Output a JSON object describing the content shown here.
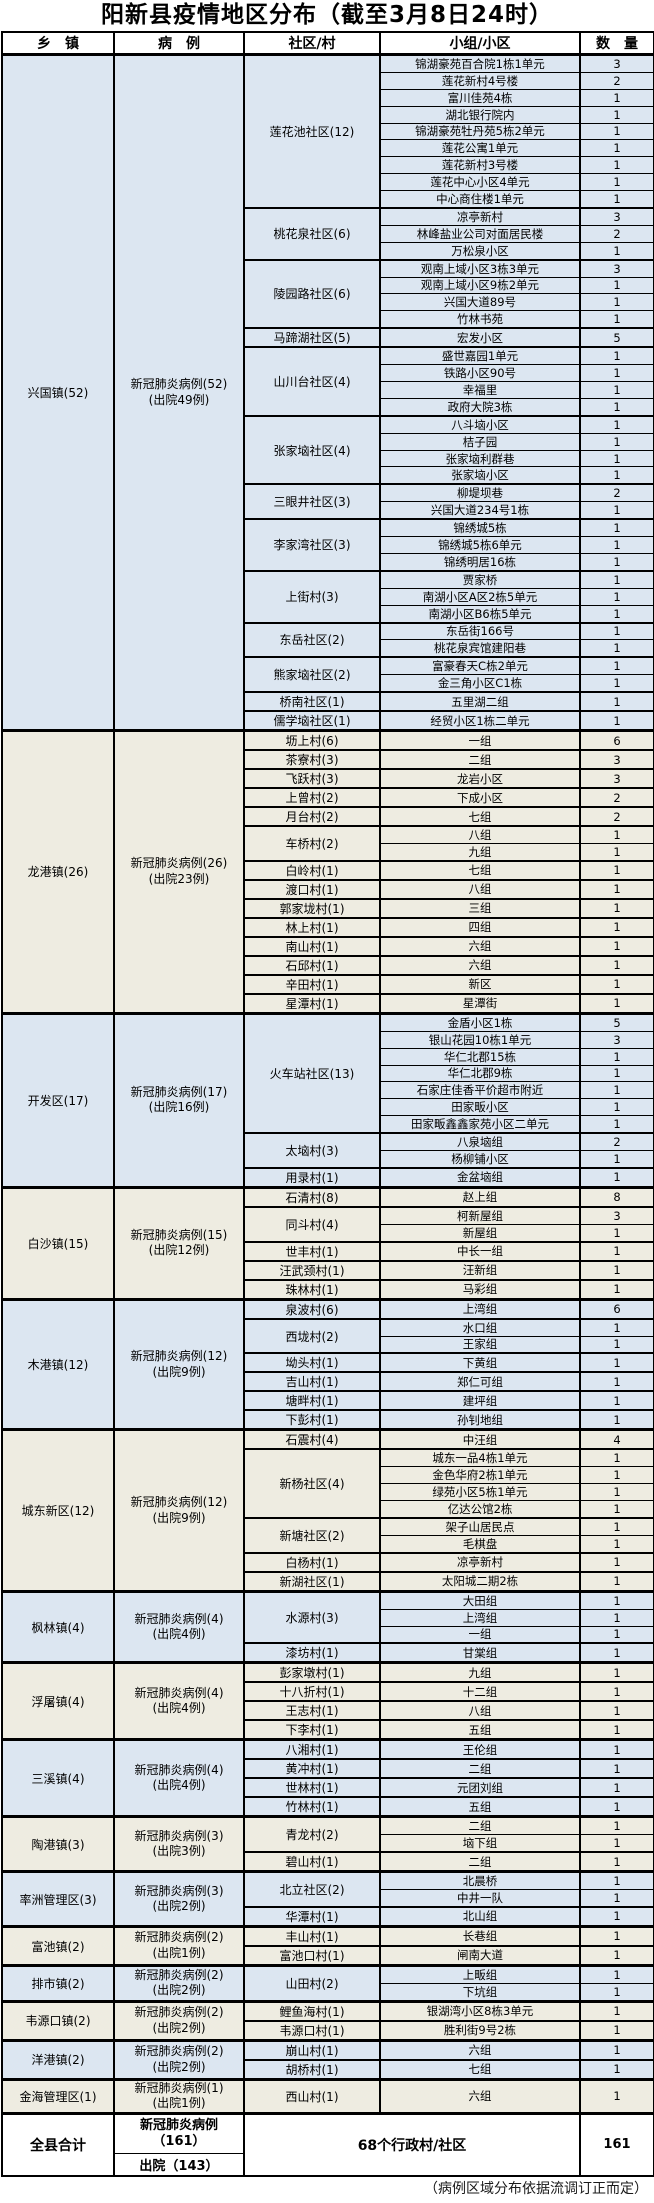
{
  "title": "阳新县疫情地区分布（截至3月8日24时）",
  "headers": {
    "town": "乡　镇",
    "cases": "病　例",
    "community": "社区/村",
    "group": "小组/小区",
    "count": "数　量"
  },
  "colors": {
    "band_blue": "#dce6f1",
    "band_cream": "#eeece1",
    "border": "#000000"
  },
  "towns": [
    {
      "name": "兴国镇(52)",
      "cases_line1": "新冠肺炎病例(52)",
      "cases_line2": "(出院49例)",
      "theme": "blue",
      "communities": [
        {
          "name": "莲花池社区(12)",
          "places": [
            {
              "place": "锦湖豪苑百合院1栋1单元",
              "count": "3"
            },
            {
              "place": "莲花新村4号楼",
              "count": "2"
            },
            {
              "place": "富川佳苑4栋",
              "count": "1"
            },
            {
              "place": "湖北银行院内",
              "count": "1"
            },
            {
              "place": "锦湖豪苑牡丹苑5栋2单元",
              "count": "1"
            },
            {
              "place": "莲花公寓1单元",
              "count": "1"
            },
            {
              "place": "莲花新村3号楼",
              "count": "1"
            },
            {
              "place": "莲花中心小区4单元",
              "count": "1"
            },
            {
              "place": "中心商住楼1单元",
              "count": "1"
            }
          ]
        },
        {
          "name": "桃花泉社区(6)",
          "places": [
            {
              "place": "凉亭新村",
              "count": "3"
            },
            {
              "place": "林峰盐业公司对面居民楼",
              "count": "2"
            },
            {
              "place": "万松泉小区",
              "count": "1"
            }
          ]
        },
        {
          "name": "陵园路社区(6)",
          "places": [
            {
              "place": "观南上域小区3栋3单元",
              "count": "3"
            },
            {
              "place": "观南上域小区9栋2单元",
              "count": "1"
            },
            {
              "place": "兴国大道89号",
              "count": "1"
            },
            {
              "place": "竹林书苑",
              "count": "1"
            }
          ]
        },
        {
          "name": "马蹄湖社区(5)",
          "places": [
            {
              "place": "宏发小区",
              "count": "5"
            }
          ]
        },
        {
          "name": "山川台社区(4)",
          "places": [
            {
              "place": "盛世嘉园1单元",
              "count": "1"
            },
            {
              "place": "铁路小区90号",
              "count": "1"
            },
            {
              "place": "幸福里",
              "count": "1"
            },
            {
              "place": "政府大院3栋",
              "count": "1"
            }
          ]
        },
        {
          "name": "张家垴社区(4)",
          "places": [
            {
              "place": "八斗垴小区",
              "count": "1"
            },
            {
              "place": "桔子园",
              "count": "1"
            },
            {
              "place": "张家垴利群巷",
              "count": "1"
            },
            {
              "place": "张家垴小区",
              "count": "1"
            }
          ]
        },
        {
          "name": "三眼井社区(3)",
          "places": [
            {
              "place": "柳堤坝巷",
              "count": "2"
            },
            {
              "place": "兴国大道234号1栋",
              "count": "1"
            }
          ]
        },
        {
          "name": "李家湾社区(3)",
          "places": [
            {
              "place": "锦绣城5栋",
              "count": "1"
            },
            {
              "place": "锦绣城5栋6单元",
              "count": "1"
            },
            {
              "place": "锦绣明居16栋",
              "count": "1"
            }
          ]
        },
        {
          "name": "上街村(3)",
          "places": [
            {
              "place": "贾家桥",
              "count": "1"
            },
            {
              "place": "南湖小区A区2栋5单元",
              "count": "1"
            },
            {
              "place": "南湖小区B6栋5单元",
              "count": "1"
            }
          ]
        },
        {
          "name": "东岳社区(2)",
          "places": [
            {
              "place": "东岳街166号",
              "count": "1"
            },
            {
              "place": "桃花泉宾馆建阳巷",
              "count": "1"
            }
          ]
        },
        {
          "name": "熊家垴社区(2)",
          "places": [
            {
              "place": "富豪春天C栋2单元",
              "count": "1"
            },
            {
              "place": "金三角小区C1栋",
              "count": "1"
            }
          ]
        },
        {
          "name": "桥南社区(1)",
          "places": [
            {
              "place": "五里湖二组",
              "count": "1"
            }
          ]
        },
        {
          "name": "儒学垴社区(1)",
          "places": [
            {
              "place": "经贸小区1栋二单元",
              "count": "1"
            }
          ]
        }
      ]
    },
    {
      "name": "龙港镇(26)",
      "cases_line1": "新冠肺炎病例(26)",
      "cases_line2": "(出院23例)",
      "theme": "cream",
      "communities": [
        {
          "name": "坜上村(6)",
          "places": [
            {
              "place": "一组",
              "count": "6"
            }
          ]
        },
        {
          "name": "茶寮村(3)",
          "places": [
            {
              "place": "二组",
              "count": "3"
            }
          ]
        },
        {
          "name": "飞跃村(3)",
          "places": [
            {
              "place": "龙岩小区",
              "count": "3"
            }
          ]
        },
        {
          "name": "上曾村(2)",
          "places": [
            {
              "place": "下成小区",
              "count": "2"
            }
          ]
        },
        {
          "name": "月台村(2)",
          "places": [
            {
              "place": "七组",
              "count": "2"
            }
          ]
        },
        {
          "name": "车桥村(2)",
          "places": [
            {
              "place": "八组",
              "count": "1"
            },
            {
              "place": "九组",
              "count": "1"
            }
          ]
        },
        {
          "name": "白岭村(1)",
          "places": [
            {
              "place": "七组",
              "count": "1"
            }
          ]
        },
        {
          "name": "渡口村(1)",
          "places": [
            {
              "place": "八组",
              "count": "1"
            }
          ]
        },
        {
          "name": "郭家垅村(1)",
          "places": [
            {
              "place": "三组",
              "count": "1"
            }
          ]
        },
        {
          "name": "林上村(1)",
          "places": [
            {
              "place": "四组",
              "count": "1"
            }
          ]
        },
        {
          "name": "南山村(1)",
          "places": [
            {
              "place": "六组",
              "count": "1"
            }
          ]
        },
        {
          "name": "石邱村(1)",
          "places": [
            {
              "place": "六组",
              "count": "1"
            }
          ]
        },
        {
          "name": "辛田村(1)",
          "places": [
            {
              "place": "新区",
              "count": "1"
            }
          ]
        },
        {
          "name": "星潭村(1)",
          "places": [
            {
              "place": "星潭街",
              "count": "1"
            }
          ]
        }
      ]
    },
    {
      "name": "开发区(17)",
      "cases_line1": "新冠肺炎病例(17)",
      "cases_line2": "(出院16例)",
      "theme": "blue",
      "communities": [
        {
          "name": "火车站社区(13)",
          "places": [
            {
              "place": "金盾小区1栋",
              "count": "5"
            },
            {
              "place": "银山花园10栋1单元",
              "count": "3"
            },
            {
              "place": "华仁北郡15栋",
              "count": "1"
            },
            {
              "place": "华仁北郡9栋",
              "count": "1"
            },
            {
              "place": "石家庄佳香平价超市附近",
              "count": "1"
            },
            {
              "place": "田家畈小区",
              "count": "1"
            },
            {
              "place": "田家畈鑫鑫家苑小区二单元",
              "count": "1"
            }
          ]
        },
        {
          "name": "太垴村(3)",
          "places": [
            {
              "place": "八泉垴组",
              "count": "2"
            },
            {
              "place": "杨柳铺小区",
              "count": "1"
            }
          ]
        },
        {
          "name": "用录村(1)",
          "places": [
            {
              "place": "金盆垴组",
              "count": "1"
            }
          ]
        }
      ]
    },
    {
      "name": "白沙镇(15)",
      "cases_line1": "新冠肺炎病例(15)",
      "cases_line2": "(出院12例)",
      "theme": "cream",
      "communities": [
        {
          "name": "石清村(8)",
          "places": [
            {
              "place": "赵上组",
              "count": "8"
            }
          ]
        },
        {
          "name": "同斗村(4)",
          "places": [
            {
              "place": "柯新屋组",
              "count": "3"
            },
            {
              "place": "新屋组",
              "count": "1"
            }
          ]
        },
        {
          "name": "世丰村(1)",
          "places": [
            {
              "place": "中长一组",
              "count": "1"
            }
          ]
        },
        {
          "name": "汪武颈村(1)",
          "places": [
            {
              "place": "汪新组",
              "count": "1"
            }
          ]
        },
        {
          "name": "珠林村(1)",
          "places": [
            {
              "place": "马彩组",
              "count": "1"
            }
          ]
        }
      ]
    },
    {
      "name": "木港镇(12)",
      "cases_line1": "新冠肺炎病例(12)",
      "cases_line2": "(出院9例)",
      "theme": "blue",
      "communities": [
        {
          "name": "泉波村(6)",
          "places": [
            {
              "place": "上湾组",
              "count": "6"
            }
          ]
        },
        {
          "name": "西垅村(2)",
          "places": [
            {
              "place": "水口组",
              "count": "1"
            },
            {
              "place": "王家组",
              "count": "1"
            }
          ]
        },
        {
          "name": "坳头村(1)",
          "places": [
            {
              "place": "下黄组",
              "count": "1"
            }
          ]
        },
        {
          "name": "吉山村(1)",
          "places": [
            {
              "place": "郑仁可组",
              "count": "1"
            }
          ]
        },
        {
          "name": "塘畔村(1)",
          "places": [
            {
              "place": "建坪组",
              "count": "1"
            }
          ]
        },
        {
          "name": "下彭村(1)",
          "places": [
            {
              "place": "孙钊地组",
              "count": "1"
            }
          ]
        }
      ]
    },
    {
      "name": "城东新区(12)",
      "cases_line1": "新冠肺炎病例(12)",
      "cases_line2": "(出院9例)",
      "theme": "cream",
      "communities": [
        {
          "name": "石震村(4)",
          "places": [
            {
              "place": "中汪组",
              "count": "4"
            }
          ]
        },
        {
          "name": "新杨社区(4)",
          "places": [
            {
              "place": "城东一品4栋1单元",
              "count": "1"
            },
            {
              "place": "金色华府2栋1单元",
              "count": "1"
            },
            {
              "place": "绿苑小区5栋1单元",
              "count": "1"
            },
            {
              "place": "亿达公馆2栋",
              "count": "1"
            }
          ]
        },
        {
          "name": "新塘社区(2)",
          "places": [
            {
              "place": "架子山居民点",
              "count": "1"
            },
            {
              "place": "毛棋盘",
              "count": "1"
            }
          ]
        },
        {
          "name": "白杨村(1)",
          "places": [
            {
              "place": "凉亭新村",
              "count": "1"
            }
          ]
        },
        {
          "name": "新湖社区(1)",
          "places": [
            {
              "place": "太阳城二期2栋",
              "count": "1"
            }
          ]
        }
      ]
    },
    {
      "name": "枫林镇(4)",
      "cases_line1": "新冠肺炎病例(4)",
      "cases_line2": "(出院4例)",
      "theme": "blue",
      "communities": [
        {
          "name": "水源村(3)",
          "places": [
            {
              "place": "大田组",
              "count": "1"
            },
            {
              "place": "上湾组",
              "count": "1"
            },
            {
              "place": "一组",
              "count": "1"
            }
          ]
        },
        {
          "name": "漆坊村(1)",
          "places": [
            {
              "place": "甘棠组",
              "count": "1"
            }
          ]
        }
      ]
    },
    {
      "name": "浮屠镇(4)",
      "cases_line1": "新冠肺炎病例(4)",
      "cases_line2": "(出院4例)",
      "theme": "cream",
      "communities": [
        {
          "name": "彭家墩村(1)",
          "places": [
            {
              "place": "九组",
              "count": "1"
            }
          ]
        },
        {
          "name": "十八折村(1)",
          "places": [
            {
              "place": "十二组",
              "count": "1"
            }
          ]
        },
        {
          "name": "王志村(1)",
          "places": [
            {
              "place": "八组",
              "count": "1"
            }
          ]
        },
        {
          "name": "下李村(1)",
          "places": [
            {
              "place": "五组",
              "count": "1"
            }
          ]
        }
      ]
    },
    {
      "name": "三溪镇(4)",
      "cases_line1": "新冠肺炎病例(4)",
      "cases_line2": "(出院4例)",
      "theme": "blue",
      "communities": [
        {
          "name": "八湘村(1)",
          "places": [
            {
              "place": "王伦组",
              "count": "1"
            }
          ]
        },
        {
          "name": "黄冲村(1)",
          "places": [
            {
              "place": "二组",
              "count": "1"
            }
          ]
        },
        {
          "name": "世林村(1)",
          "places": [
            {
              "place": "元团刘组",
              "count": "1"
            }
          ]
        },
        {
          "name": "竹林村(1)",
          "places": [
            {
              "place": "五组",
              "count": "1"
            }
          ]
        }
      ]
    },
    {
      "name": "陶港镇(3)",
      "cases_line1": "新冠肺炎病例(3)",
      "cases_line2": "(出院3例)",
      "theme": "cream",
      "communities": [
        {
          "name": "青龙村(2)",
          "places": [
            {
              "place": "二组",
              "count": "1"
            },
            {
              "place": "垴下组",
              "count": "1"
            }
          ]
        },
        {
          "name": "碧山村(1)",
          "places": [
            {
              "place": "二组",
              "count": "1"
            }
          ]
        }
      ]
    },
    {
      "name": "率洲管理区(3)",
      "cases_line1": "新冠肺炎病例(3)",
      "cases_line2": "(出院2例)",
      "theme": "blue",
      "communities": [
        {
          "name": "北立社区(2)",
          "places": [
            {
              "place": "北晨桥",
              "count": "1"
            },
            {
              "place": "中井一队",
              "count": "1"
            }
          ]
        },
        {
          "name": "华潭村(1)",
          "places": [
            {
              "place": "北山组",
              "count": "1"
            }
          ]
        }
      ]
    },
    {
      "name": "富池镇(2)",
      "cases_line1": "新冠肺炎病例(2)",
      "cases_line2": "(出院1例)",
      "theme": "cream",
      "communities": [
        {
          "name": "丰山村(1)",
          "places": [
            {
              "place": "长巷组",
              "count": "1"
            }
          ]
        },
        {
          "name": "富池口村(1)",
          "places": [
            {
              "place": "闸南大道",
              "count": "1"
            }
          ]
        }
      ]
    },
    {
      "name": "排市镇(2)",
      "cases_line1": "新冠肺炎病例(2)",
      "cases_line2": "(出院2例)",
      "theme": "blue",
      "communities": [
        {
          "name": "山田村(2)",
          "places": [
            {
              "place": "上畈组",
              "count": "1"
            },
            {
              "place": "下坑组",
              "count": "1"
            }
          ]
        }
      ]
    },
    {
      "name": "韦源口镇(2)",
      "cases_line1": "新冠肺炎病例(2)",
      "cases_line2": "(出院2例)",
      "theme": "cream",
      "communities": [
        {
          "name": "鲤鱼海村(1)",
          "places": [
            {
              "place": "银湖湾小区8栋3单元",
              "count": "1"
            }
          ]
        },
        {
          "name": "韦源口村(1)",
          "places": [
            {
              "place": "胜利街9号2栋",
              "count": "1"
            }
          ]
        }
      ]
    },
    {
      "name": "洋港镇(2)",
      "cases_line1": "新冠肺炎病例(2)",
      "cases_line2": "(出院2例)",
      "theme": "blue",
      "communities": [
        {
          "name": "崩山村(1)",
          "places": [
            {
              "place": "六组",
              "count": "1"
            }
          ]
        },
        {
          "name": "胡桥村(1)",
          "places": [
            {
              "place": "七组",
              "count": "1"
            }
          ]
        }
      ]
    },
    {
      "name": "金海管理区(1)",
      "cases_line1": "新冠肺炎病例(1)",
      "cases_line2": "(出院1例)",
      "theme": "cream",
      "communities": [
        {
          "name": "西山村(1)",
          "places": [
            {
              "place": "六组",
              "count": "1"
            }
          ]
        }
      ]
    }
  ],
  "total": {
    "label": "全县合计",
    "cases_line1": "新冠肺炎病例",
    "cases_line2": "（161）",
    "discharged": "出院（143）",
    "middle": "68个行政村/社区",
    "count": "161"
  },
  "footnote": "（病例区域分布依据流调订正而定）"
}
